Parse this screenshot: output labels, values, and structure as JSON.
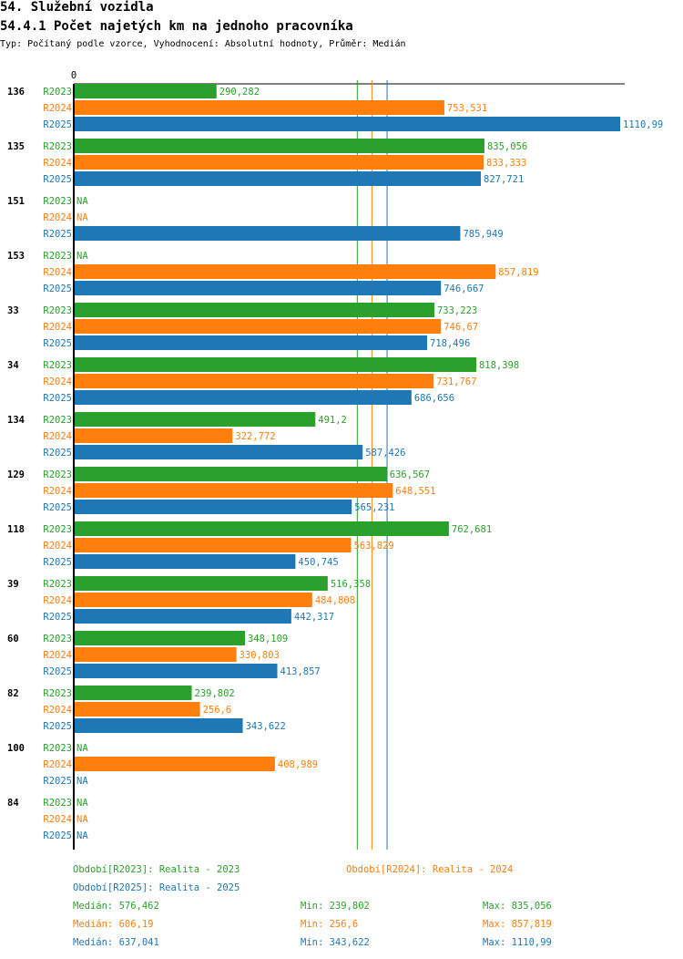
{
  "header": {
    "title": "54. Služební vozidla",
    "subtitle": "54.4.1 Počet najetých km na jednoho pracovníka",
    "info": "Typ: Počítaný podle vzorce, Vyhodnocení: Absolutní hodnoty, Průměr: Medián"
  },
  "chart_data": {
    "type": "bar",
    "orientation": "horizontal",
    "x_tick": "0",
    "xlim": [
      0,
      1110.99
    ],
    "series": [
      {
        "name": "R2023",
        "color": "#2ca02c"
      },
      {
        "name": "R2024",
        "color": "#ff7f0e"
      },
      {
        "name": "R2025",
        "color": "#1f77b4"
      }
    ],
    "na_label": "NA",
    "groups": [
      {
        "label": "136",
        "values": [
          "290,282",
          "753,531",
          "1110,99"
        ]
      },
      {
        "label": "135",
        "values": [
          "835,056",
          "833,333",
          "827,721"
        ]
      },
      {
        "label": "151",
        "values": [
          null,
          null,
          "785,949"
        ]
      },
      {
        "label": "153",
        "values": [
          null,
          "857,819",
          "746,667"
        ]
      },
      {
        "label": "33",
        "values": [
          "733,223",
          "746,67",
          "718,496"
        ]
      },
      {
        "label": "34",
        "values": [
          "818,398",
          "731,767",
          "686,656"
        ]
      },
      {
        "label": "134",
        "values": [
          "491,2",
          "322,772",
          "587,426"
        ]
      },
      {
        "label": "129",
        "values": [
          "636,567",
          "648,551",
          "565,231"
        ]
      },
      {
        "label": "118",
        "values": [
          "762,681",
          "563,829",
          "450,745"
        ]
      },
      {
        "label": "39",
        "values": [
          "516,358",
          "484,808",
          "442,317"
        ]
      },
      {
        "label": "60",
        "values": [
          "348,109",
          "330,803",
          "413,857"
        ]
      },
      {
        "label": "82",
        "values": [
          "239,802",
          "256,6",
          "343,622"
        ]
      },
      {
        "label": "100",
        "values": [
          null,
          "408,989",
          null
        ]
      },
      {
        "label": "84",
        "values": [
          null,
          null,
          null
        ]
      }
    ],
    "medians": [
      576.462,
      606.19,
      637.041
    ]
  },
  "legend": {
    "periods": [
      "Období[R2023]: Realita - 2023",
      "Období[R2024]: Realita - 2024",
      "Období[R2025]: Realita - 2025"
    ],
    "stats": [
      {
        "median": "Medián: 576,462",
        "min": "Min: 239,802",
        "max": "Max: 835,056"
      },
      {
        "median": "Medián: 606,19",
        "min": "Min: 256,6",
        "max": "Max: 857,819"
      },
      {
        "median": "Medián: 637,041",
        "min": "Min: 343,622",
        "max": "Max: 1110,99"
      }
    ]
  }
}
